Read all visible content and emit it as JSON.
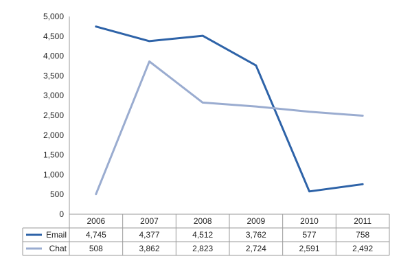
{
  "chart_data": {
    "type": "line",
    "title": "",
    "xlabel": "",
    "ylabel": "",
    "categories": [
      "2006",
      "2007",
      "2008",
      "2009",
      "2010",
      "2011"
    ],
    "ylim": [
      0,
      5000
    ],
    "y_ticks": [
      0,
      500,
      1000,
      1500,
      2000,
      2500,
      3000,
      3500,
      4000,
      4500,
      5000
    ],
    "y_tick_labels": [
      "0",
      "500",
      "1,000",
      "1,500",
      "2,000",
      "2,500",
      "3,000",
      "3,500",
      "4,000",
      "4,500",
      "5,000"
    ],
    "grid": false,
    "legend": "data-table-left",
    "series": [
      {
        "name": "Email",
        "color": "#2e63a8",
        "values": [
          4745,
          4377,
          4512,
          3762,
          577,
          758
        ],
        "labels": [
          "4,745",
          "4,377",
          "4,512",
          "3,762",
          "577",
          "758"
        ]
      },
      {
        "name": "Chat",
        "color": "#9aacd0",
        "values": [
          508,
          3862,
          2823,
          2724,
          2591,
          2492
        ],
        "labels": [
          "508",
          "3,862",
          "2,823",
          "2,724",
          "2,591",
          "2,492"
        ]
      }
    ]
  }
}
